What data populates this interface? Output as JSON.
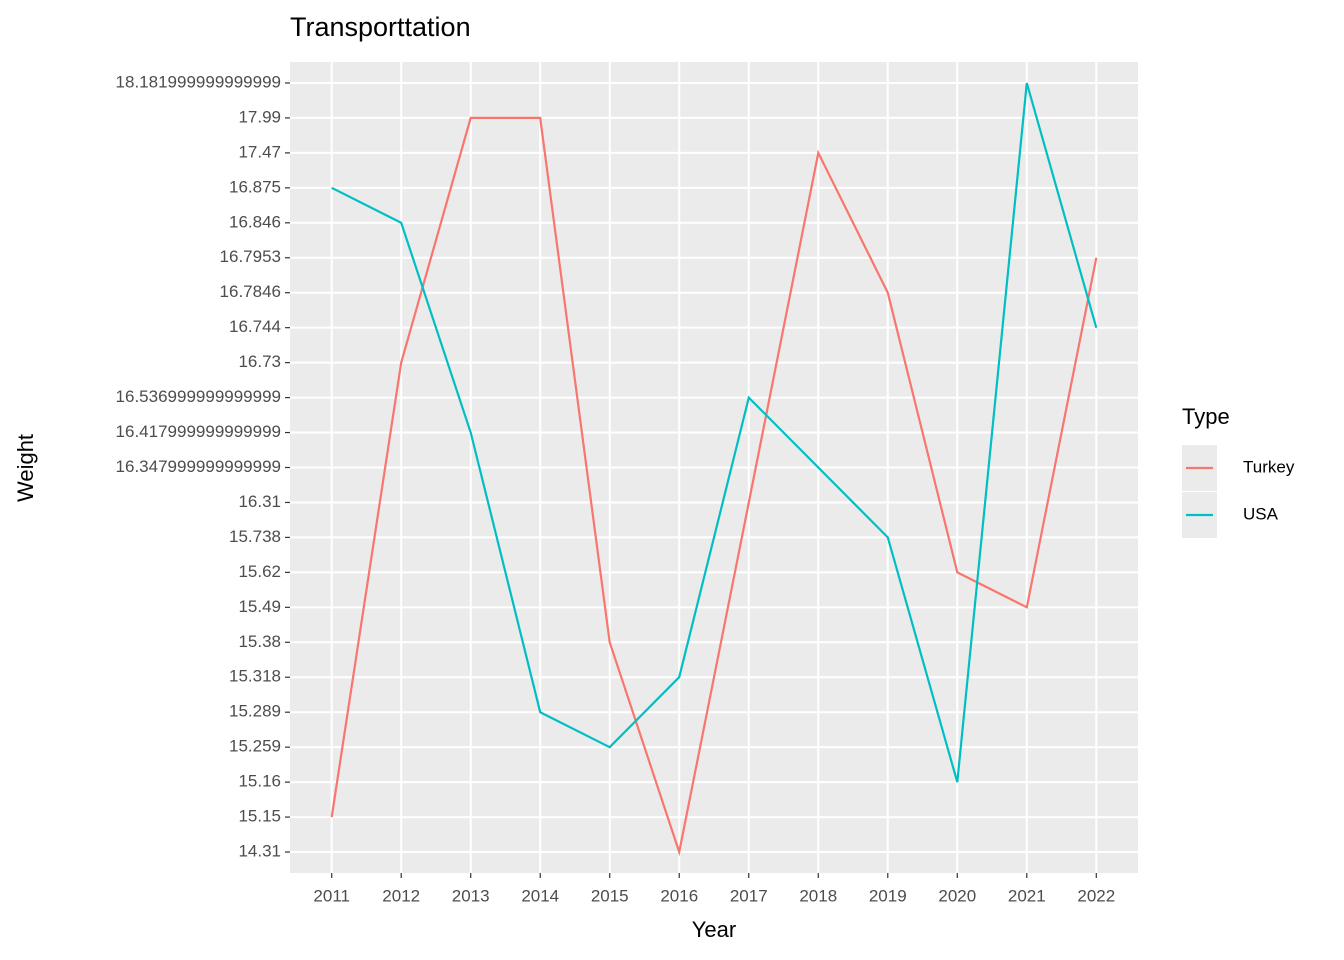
{
  "chart_data": {
    "type": "line",
    "title": "Transporttation",
    "x_label": "Year",
    "y_label": "Weight",
    "categories": [
      "2011",
      "2012",
      "2013",
      "2014",
      "2015",
      "2016",
      "2017",
      "2018",
      "2019",
      "2020",
      "2021",
      "2022"
    ],
    "yscale": "discrete",
    "yticks": [
      14.31,
      15.15,
      15.16,
      15.259,
      15.289,
      15.318,
      15.38,
      15.49,
      15.62,
      15.738,
      16.31,
      {
        "value": 16.348,
        "label": "16.347999999999999"
      },
      {
        "value": 16.418,
        "label": "16.417999999999999"
      },
      {
        "value": 16.537,
        "label": "16.536999999999999"
      },
      16.73,
      16.744,
      16.7846,
      16.7953,
      16.846,
      16.875,
      17.47,
      17.99,
      {
        "value": 18.182,
        "label": "18.181999999999999"
      }
    ],
    "grid": true,
    "legend_title": "Type",
    "legend_position": "right",
    "series": [
      {
        "name": "Turkey",
        "color": "#F8766D",
        "values": [
          15.15,
          16.73,
          17.99,
          17.99,
          15.38,
          14.31,
          16.31,
          17.47,
          16.7846,
          15.62,
          15.49,
          16.7953
        ]
      },
      {
        "name": "USA",
        "color": "#00BFC4",
        "values": [
          16.875,
          16.846,
          16.418,
          15.289,
          15.259,
          15.318,
          16.537,
          16.348,
          15.738,
          15.16,
          18.182,
          16.744
        ]
      }
    ]
  }
}
